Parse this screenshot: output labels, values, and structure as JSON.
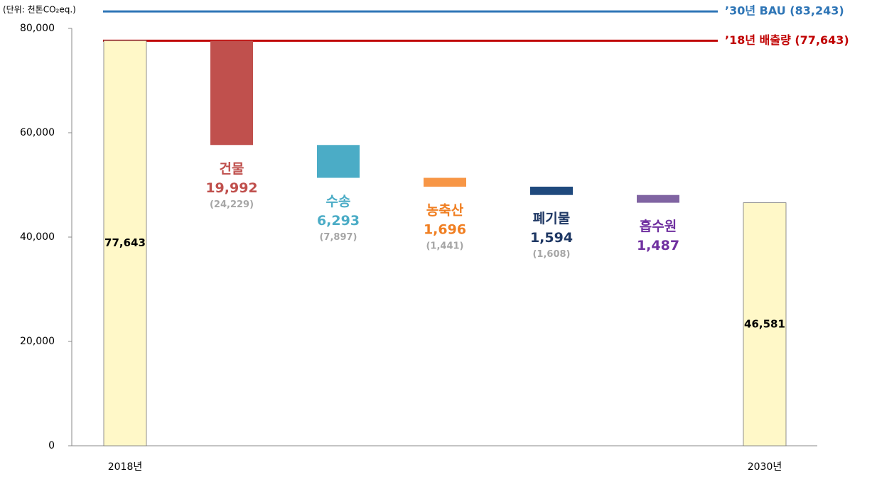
{
  "chart_data": {
    "type": "waterfall",
    "unit": "(단위: 천톤CO₂eq.)",
    "categories": [
      "2018년",
      "건물",
      "수송",
      "농축산",
      "폐기물",
      "흡수원",
      "2030년"
    ],
    "measure": [
      "total",
      "decrease",
      "decrease",
      "decrease",
      "decrease",
      "decrease",
      "total"
    ],
    "values": [
      77643,
      19992,
      6293,
      1696,
      1594,
      1487,
      46581
    ],
    "value_labels": [
      "77,643",
      "19,992",
      "6,293",
      "1,696",
      "1,594",
      "1,487",
      "46,581"
    ],
    "reference_labels": [
      null,
      "(24,229)",
      "(7,897)",
      "(1,441)",
      "(1,608)",
      null,
      null
    ],
    "colors": [
      "#fff8c8",
      "#c0504d",
      "#4bacc6",
      "#f79646",
      "#1f497d",
      "#8064a2",
      "#fff8c8"
    ],
    "label_colors": [
      "#000000",
      "#c0504d",
      "#4bacc6",
      "#f07f22",
      "#1f3864",
      "#7030a0",
      "#000000"
    ],
    "reference_lines": [
      {
        "label": "’30년 BAU (83,243)",
        "value": 83243,
        "color": "#2e75b6"
      },
      {
        "label": "’18년 배출량 (77,643)",
        "value": 77643,
        "color": "#c00000"
      }
    ],
    "ylim": [
      0,
      80000
    ],
    "yticks": [
      0,
      {
        "value": 20000,
        "label": "20,000"
      },
      {
        "value": 40000,
        "label": "40,000"
      },
      {
        "value": 60000,
        "label": "60,000"
      },
      {
        "value": 80000,
        "label": "80,000"
      }
    ]
  }
}
